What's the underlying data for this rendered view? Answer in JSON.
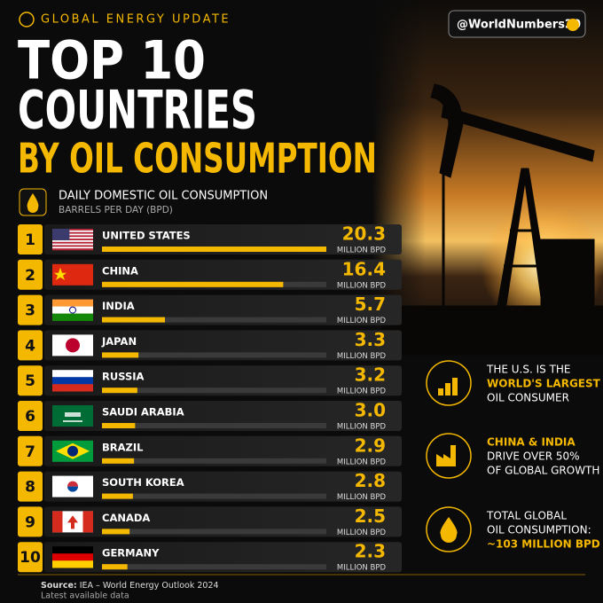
{
  "header": {
    "kicker": "GLOBAL ENERGY UPDATE",
    "title_line1": "TOP 10",
    "title_line2": "COUNTRIES",
    "title_line3": "BY OIL CONSUMPTION",
    "handle": "@WorldNumbers20"
  },
  "chart_data": {
    "type": "bar",
    "title": "DAILY DOMESTIC OIL CONSUMPTION",
    "subtitle": "BARRELS PER DAY (BPD)",
    "ranks": [
      1,
      2,
      3,
      4,
      5,
      6,
      7,
      8,
      9,
      10
    ],
    "categories": [
      "UNITED STATES",
      "CHINA",
      "INDIA",
      "JAPAN",
      "RUSSIA",
      "SAUDI ARABIA",
      "BRAZIL",
      "SOUTH KOREA",
      "CANADA",
      "GERMANY"
    ],
    "values": [
      20.3,
      16.4,
      5.7,
      3.3,
      3.2,
      3.0,
      2.9,
      2.8,
      2.5,
      2.3
    ],
    "value_labels": [
      "20.3",
      "16.4",
      "5.7",
      "3.3",
      "3.2",
      "3.0",
      "2.9",
      "2.8",
      "2.5",
      "2.3"
    ],
    "unit": "MILLION BPD",
    "color": "#f5b800",
    "track_color": "#3a3a3a"
  },
  "facts": [
    {
      "line1": "THE U.S. IS THE",
      "highlight": "WORLD'S LARGEST",
      "line3": "OIL CONSUMER"
    },
    {
      "highlight": "CHINA & INDIA",
      "line2": "DRIVE OVER 50%",
      "line3": "OF GLOBAL GROWTH"
    },
    {
      "line1": "TOTAL GLOBAL",
      "line2": "OIL CONSUMPTION:",
      "highlight": "~103 MILLION BPD"
    }
  ],
  "footer": {
    "source_label": "Source:",
    "source": "IEA – World Energy Outlook 2024",
    "note": "Latest available data"
  }
}
